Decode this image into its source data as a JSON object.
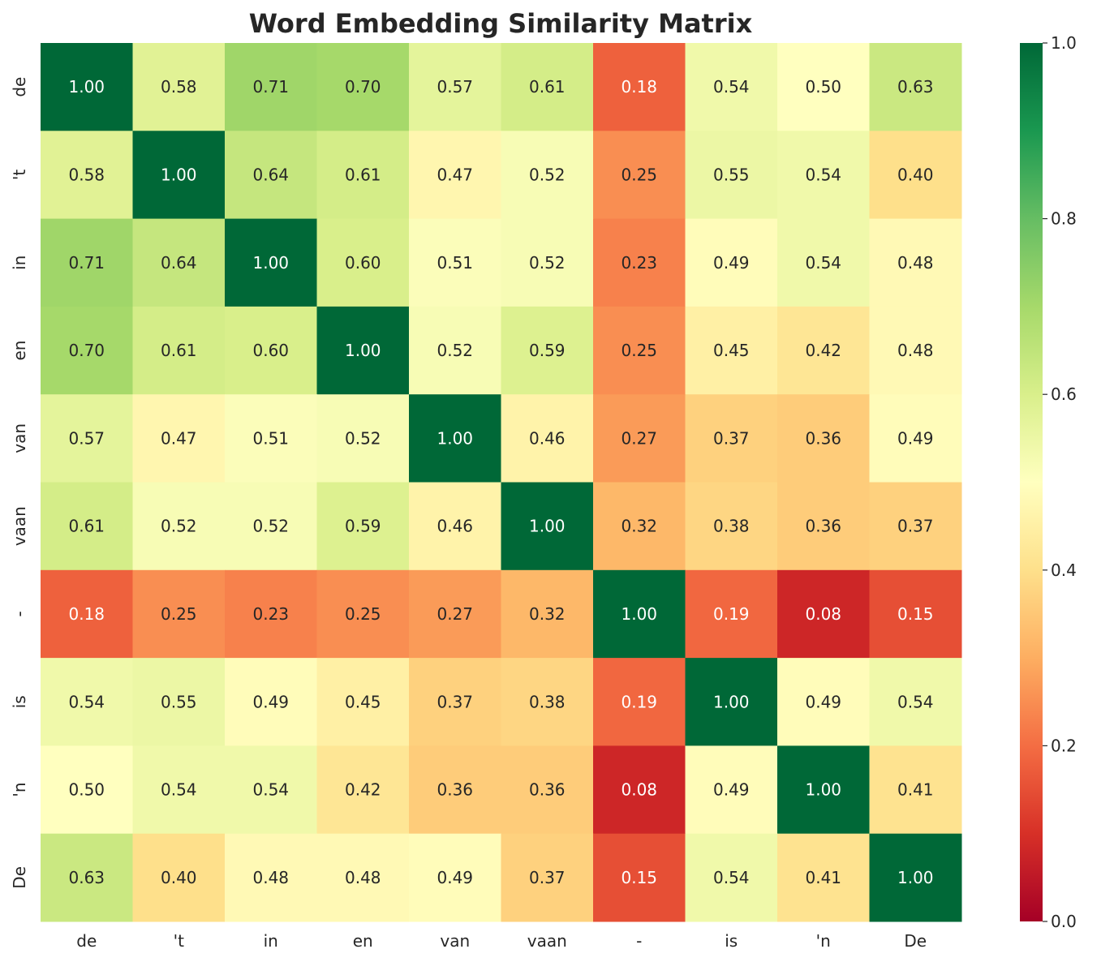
{
  "chart_data": {
    "type": "heatmap",
    "title": "Word Embedding Similarity Matrix",
    "x_labels": [
      "de",
      "'t",
      "in",
      "en",
      "van",
      "vaan",
      "-",
      "is",
      "'n",
      "De"
    ],
    "y_labels": [
      "de",
      "'t",
      "in",
      "en",
      "van",
      "vaan",
      "-",
      "is",
      "'n",
      "De"
    ],
    "values": [
      [
        1.0,
        0.58,
        0.71,
        0.7,
        0.57,
        0.61,
        0.18,
        0.54,
        0.5,
        0.63
      ],
      [
        0.58,
        1.0,
        0.64,
        0.61,
        0.47,
        0.52,
        0.25,
        0.55,
        0.54,
        0.4
      ],
      [
        0.71,
        0.64,
        1.0,
        0.6,
        0.51,
        0.52,
        0.23,
        0.49,
        0.54,
        0.48
      ],
      [
        0.7,
        0.61,
        0.6,
        1.0,
        0.52,
        0.59,
        0.25,
        0.45,
        0.42,
        0.48
      ],
      [
        0.57,
        0.47,
        0.51,
        0.52,
        1.0,
        0.46,
        0.27,
        0.37,
        0.36,
        0.49
      ],
      [
        0.61,
        0.52,
        0.52,
        0.59,
        0.46,
        1.0,
        0.32,
        0.38,
        0.36,
        0.37
      ],
      [
        0.18,
        0.25,
        0.23,
        0.25,
        0.27,
        0.32,
        1.0,
        0.19,
        0.08,
        0.15
      ],
      [
        0.54,
        0.55,
        0.49,
        0.45,
        0.37,
        0.38,
        0.19,
        1.0,
        0.49,
        0.54
      ],
      [
        0.5,
        0.54,
        0.54,
        0.42,
        0.36,
        0.36,
        0.08,
        0.49,
        1.0,
        0.41
      ],
      [
        0.63,
        0.4,
        0.48,
        0.48,
        0.49,
        0.37,
        0.15,
        0.54,
        0.41,
        1.0
      ]
    ],
    "colormap": "RdYlGn",
    "vmin": 0.0,
    "vmax": 1.0,
    "colorbar_ticks": [
      "0.0",
      "0.2",
      "0.4",
      "0.6",
      "0.8",
      "1.0"
    ],
    "colorbar_tick_values": [
      0.0,
      0.2,
      0.4,
      0.6,
      0.8,
      1.0
    ],
    "annotation_format": "2 decimals",
    "grid": false,
    "legend": "colorbar-right"
  }
}
